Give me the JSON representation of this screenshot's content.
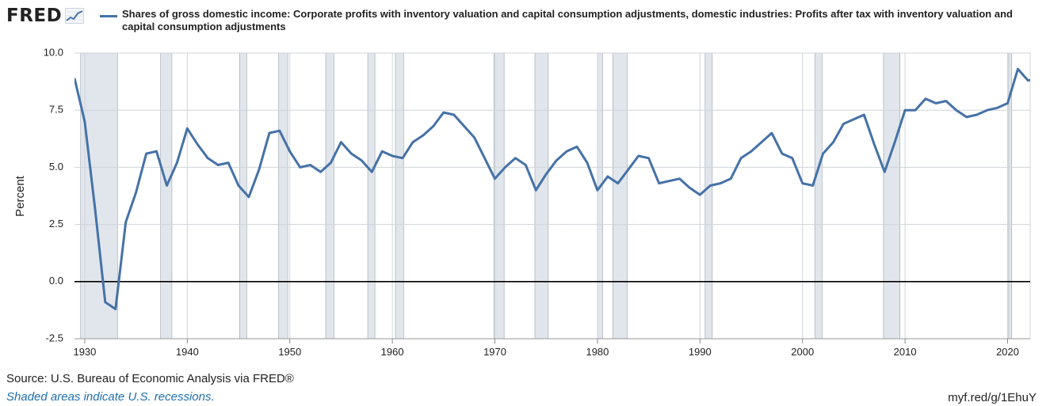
{
  "header": {
    "logo_text": "FRED",
    "logo_icon": "trend-line-icon"
  },
  "legend": {
    "label": "Shares of gross domestic income: Corporate profits with inventory valuation and capital consumption adjustments, domestic industries: Profits after tax with inventory valuation and capital consumption adjustments",
    "color": "#4572a7"
  },
  "footer": {
    "source": "Source: U.S. Bureau of Economic Analysis via FRED®",
    "note": "Shaded areas indicate U.S. recessions.",
    "short_url": "myf.red/g/1EhuY"
  },
  "chart_data": {
    "type": "line",
    "ylabel": "Percent",
    "xlabel": "",
    "xlim": [
      1929,
      2022.2
    ],
    "ylim": [
      -2.5,
      10.0
    ],
    "yticks": [
      "-2.5",
      "0.0",
      "2.5",
      "5.0",
      "7.5",
      "10.0"
    ],
    "xticks": [
      "1930",
      "1940",
      "1950",
      "1960",
      "1970",
      "1980",
      "1990",
      "2000",
      "2010",
      "2020"
    ],
    "grid": true,
    "recessions": [
      [
        1929.6,
        1933.2
      ],
      [
        1937.4,
        1938.5
      ],
      [
        1945.1,
        1945.8
      ],
      [
        1948.9,
        1949.8
      ],
      [
        1953.5,
        1954.3
      ],
      [
        1957.6,
        1958.3
      ],
      [
        1960.3,
        1961.1
      ],
      [
        1969.9,
        1970.9
      ],
      [
        1973.9,
        1975.2
      ],
      [
        1980.0,
        1980.5
      ],
      [
        1981.5,
        1982.9
      ],
      [
        1990.5,
        1991.2
      ],
      [
        2001.2,
        2001.9
      ],
      [
        2007.9,
        2009.5
      ],
      [
        2020.1,
        2020.4
      ]
    ],
    "series": [
      {
        "name": "Shares of gross domestic income: Corporate profits with inventory valuation and capital consumption adjustments, domestic industries: Profits after tax with inventory valuation and capital consumption adjustments",
        "color": "#4572a7",
        "x": [
          1929,
          1930,
          1931,
          1932,
          1933,
          1934,
          1935,
          1936,
          1937,
          1938,
          1939,
          1940,
          1941,
          1942,
          1943,
          1944,
          1945,
          1946,
          1947,
          1948,
          1949,
          1950,
          1951,
          1952,
          1953,
          1954,
          1955,
          1956,
          1957,
          1958,
          1959,
          1960,
          1961,
          1962,
          1963,
          1964,
          1965,
          1966,
          1967,
          1968,
          1969,
          1970,
          1971,
          1972,
          1973,
          1974,
          1975,
          1976,
          1977,
          1978,
          1979,
          1980,
          1981,
          1982,
          1983,
          1984,
          1985,
          1986,
          1987,
          1988,
          1989,
          1990,
          1991,
          1992,
          1993,
          1994,
          1995,
          1996,
          1997,
          1998,
          1999,
          2000,
          2001,
          2002,
          2003,
          2004,
          2005,
          2006,
          2007,
          2008,
          2009,
          2010,
          2011,
          2012,
          2013,
          2014,
          2015,
          2016,
          2017,
          2018,
          2019,
          2020,
          2021,
          2022,
          2023
        ],
        "values": [
          8.9,
          7.0,
          3.2,
          -0.9,
          -1.2,
          2.6,
          3.9,
          5.6,
          5.7,
          4.2,
          5.2,
          6.7,
          6.0,
          5.4,
          5.1,
          5.2,
          4.2,
          3.7,
          4.9,
          6.5,
          6.6,
          5.7,
          5.0,
          5.1,
          4.8,
          5.2,
          6.1,
          5.6,
          5.3,
          4.8,
          5.7,
          5.5,
          5.4,
          6.1,
          6.4,
          6.8,
          7.4,
          7.3,
          6.8,
          6.3,
          5.4,
          4.5,
          5.0,
          5.4,
          5.1,
          4.0,
          4.7,
          5.3,
          5.7,
          5.9,
          5.2,
          4.0,
          4.6,
          4.3,
          4.9,
          5.5,
          5.4,
          4.3,
          4.4,
          4.5,
          4.1,
          3.8,
          4.2,
          4.3,
          4.5,
          5.4,
          5.7,
          6.1,
          6.5,
          5.6,
          5.4,
          4.3,
          4.2,
          5.6,
          6.1,
          6.9,
          7.1,
          7.3,
          6.0,
          4.8,
          6.1,
          7.5,
          7.5,
          8.0,
          7.8,
          7.9,
          7.5,
          7.2,
          7.3,
          7.5,
          7.6,
          7.8,
          9.3,
          8.8,
          8.9
        ]
      }
    ]
  }
}
